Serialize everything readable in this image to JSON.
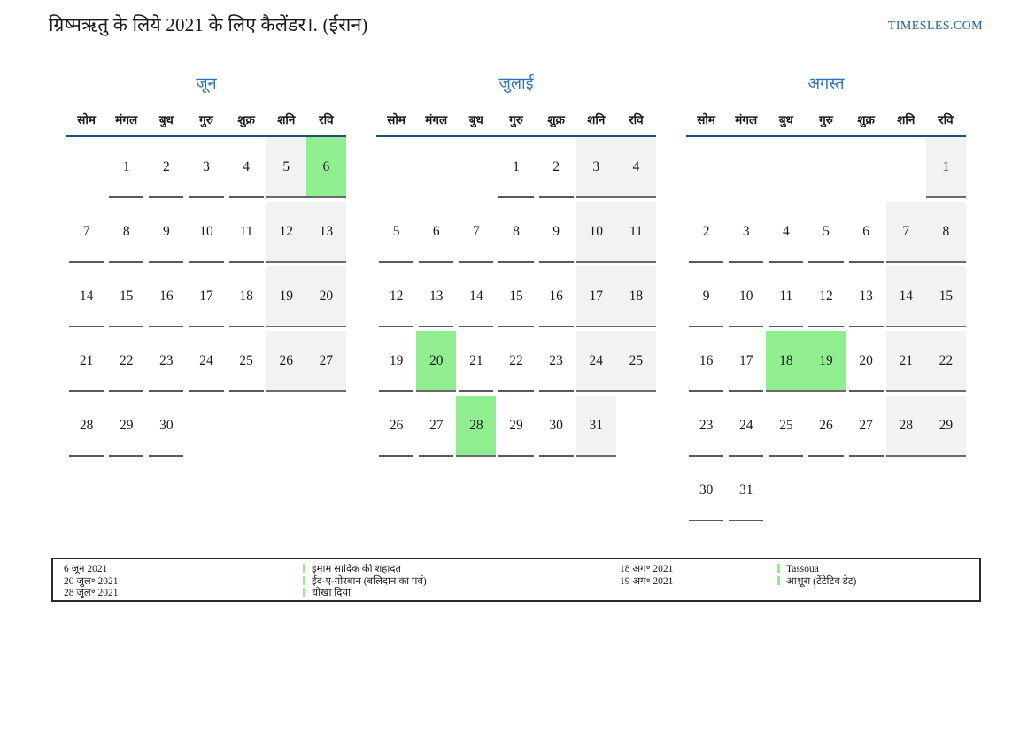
{
  "header": {
    "title": "ग्रिष्मऋतु के लिये 2021 के लिए कैलेंडर।. (ईरान)",
    "brand": "TIMESLES.COM"
  },
  "weekdays": [
    "सोम",
    "मंगल",
    "बुध",
    "गुरु",
    "शुक्र",
    "शनि",
    "रवि"
  ],
  "months": [
    {
      "id": "june",
      "title": "जून",
      "rows": [
        [
          {
            "d": "",
            "t": ""
          },
          {
            "d": "1",
            "t": "n"
          },
          {
            "d": "2",
            "t": "n"
          },
          {
            "d": "3",
            "t": "n"
          },
          {
            "d": "4",
            "t": "n"
          },
          {
            "d": "5",
            "t": "w"
          },
          {
            "d": "6",
            "t": "h"
          }
        ],
        [
          {
            "d": "7",
            "t": "n"
          },
          {
            "d": "8",
            "t": "n"
          },
          {
            "d": "9",
            "t": "n"
          },
          {
            "d": "10",
            "t": "n"
          },
          {
            "d": "11",
            "t": "n"
          },
          {
            "d": "12",
            "t": "w"
          },
          {
            "d": "13",
            "t": "w"
          }
        ],
        [
          {
            "d": "14",
            "t": "n"
          },
          {
            "d": "15",
            "t": "n"
          },
          {
            "d": "16",
            "t": "n"
          },
          {
            "d": "17",
            "t": "n"
          },
          {
            "d": "18",
            "t": "n"
          },
          {
            "d": "19",
            "t": "w"
          },
          {
            "d": "20",
            "t": "w"
          }
        ],
        [
          {
            "d": "21",
            "t": "n"
          },
          {
            "d": "22",
            "t": "n"
          },
          {
            "d": "23",
            "t": "n"
          },
          {
            "d": "24",
            "t": "n"
          },
          {
            "d": "25",
            "t": "n"
          },
          {
            "d": "26",
            "t": "w"
          },
          {
            "d": "27",
            "t": "w"
          }
        ],
        [
          {
            "d": "28",
            "t": "n"
          },
          {
            "d": "29",
            "t": "n"
          },
          {
            "d": "30",
            "t": "n"
          },
          {
            "d": "",
            "t": ""
          },
          {
            "d": "",
            "t": ""
          },
          {
            "d": "",
            "t": ""
          },
          {
            "d": "",
            "t": ""
          }
        ]
      ]
    },
    {
      "id": "july",
      "title": "जुलाई",
      "rows": [
        [
          {
            "d": "",
            "t": ""
          },
          {
            "d": "",
            "t": ""
          },
          {
            "d": "",
            "t": ""
          },
          {
            "d": "1",
            "t": "n"
          },
          {
            "d": "2",
            "t": "n"
          },
          {
            "d": "3",
            "t": "w"
          },
          {
            "d": "4",
            "t": "w"
          }
        ],
        [
          {
            "d": "5",
            "t": "n"
          },
          {
            "d": "6",
            "t": "n"
          },
          {
            "d": "7",
            "t": "n"
          },
          {
            "d": "8",
            "t": "n"
          },
          {
            "d": "9",
            "t": "n"
          },
          {
            "d": "10",
            "t": "w"
          },
          {
            "d": "11",
            "t": "w"
          }
        ],
        [
          {
            "d": "12",
            "t": "n"
          },
          {
            "d": "13",
            "t": "n"
          },
          {
            "d": "14",
            "t": "n"
          },
          {
            "d": "15",
            "t": "n"
          },
          {
            "d": "16",
            "t": "n"
          },
          {
            "d": "17",
            "t": "w"
          },
          {
            "d": "18",
            "t": "w"
          }
        ],
        [
          {
            "d": "19",
            "t": "n"
          },
          {
            "d": "20",
            "t": "h"
          },
          {
            "d": "21",
            "t": "n"
          },
          {
            "d": "22",
            "t": "n"
          },
          {
            "d": "23",
            "t": "n"
          },
          {
            "d": "24",
            "t": "w"
          },
          {
            "d": "25",
            "t": "w"
          }
        ],
        [
          {
            "d": "26",
            "t": "n"
          },
          {
            "d": "27",
            "t": "n"
          },
          {
            "d": "28",
            "t": "h"
          },
          {
            "d": "29",
            "t": "n"
          },
          {
            "d": "30",
            "t": "n"
          },
          {
            "d": "31",
            "t": "w"
          },
          {
            "d": "",
            "t": ""
          }
        ]
      ]
    },
    {
      "id": "august",
      "title": "अगस्त",
      "rows": [
        [
          {
            "d": "",
            "t": ""
          },
          {
            "d": "",
            "t": ""
          },
          {
            "d": "",
            "t": ""
          },
          {
            "d": "",
            "t": ""
          },
          {
            "d": "",
            "t": ""
          },
          {
            "d": "",
            "t": ""
          },
          {
            "d": "1",
            "t": "w"
          }
        ],
        [
          {
            "d": "2",
            "t": "n"
          },
          {
            "d": "3",
            "t": "n"
          },
          {
            "d": "4",
            "t": "n"
          },
          {
            "d": "5",
            "t": "n"
          },
          {
            "d": "6",
            "t": "n"
          },
          {
            "d": "7",
            "t": "w"
          },
          {
            "d": "8",
            "t": "w"
          }
        ],
        [
          {
            "d": "9",
            "t": "n"
          },
          {
            "d": "10",
            "t": "n"
          },
          {
            "d": "11",
            "t": "n"
          },
          {
            "d": "12",
            "t": "n"
          },
          {
            "d": "13",
            "t": "n"
          },
          {
            "d": "14",
            "t": "w"
          },
          {
            "d": "15",
            "t": "w"
          }
        ],
        [
          {
            "d": "16",
            "t": "n"
          },
          {
            "d": "17",
            "t": "n"
          },
          {
            "d": "18",
            "t": "h"
          },
          {
            "d": "19",
            "t": "h"
          },
          {
            "d": "20",
            "t": "n"
          },
          {
            "d": "21",
            "t": "w"
          },
          {
            "d": "22",
            "t": "w"
          }
        ],
        [
          {
            "d": "23",
            "t": "n"
          },
          {
            "d": "24",
            "t": "n"
          },
          {
            "d": "25",
            "t": "n"
          },
          {
            "d": "26",
            "t": "n"
          },
          {
            "d": "27",
            "t": "n"
          },
          {
            "d": "28",
            "t": "w"
          },
          {
            "d": "29",
            "t": "w"
          }
        ],
        [
          {
            "d": "30",
            "t": "n"
          },
          {
            "d": "31",
            "t": "n"
          },
          {
            "d": "",
            "t": ""
          },
          {
            "d": "",
            "t": ""
          },
          {
            "d": "",
            "t": ""
          },
          {
            "d": "",
            "t": ""
          },
          {
            "d": "",
            "t": ""
          }
        ]
      ]
    }
  ],
  "legend": {
    "groups": [
      {
        "entries": [
          {
            "date": "6 जून 2021",
            "name": "इमाम सादिक की शहादत"
          },
          {
            "date": "20 जुल॰ 2021",
            "name": "ईद-ए-ग़ोरबान (बलिदान का पर्व)"
          },
          {
            "date": "28 जुल॰ 2021",
            "name": "धोखा दिया"
          }
        ]
      },
      {
        "entries": [
          {
            "date": "18 अग॰ 2021",
            "name": "Tassoua"
          },
          {
            "date": "19 अग॰ 2021",
            "name": "आशूरा (टेंटेटिव डेट)"
          }
        ]
      }
    ]
  },
  "colors": {
    "holiday_green": "#90EE90",
    "weekend_gray": "#F2F2F2",
    "month_title_blue": "#2E74B5",
    "brand_blue": "#2060A8",
    "header_rule_navy": "#1F4E79",
    "day_underline_gray": "#595959"
  }
}
